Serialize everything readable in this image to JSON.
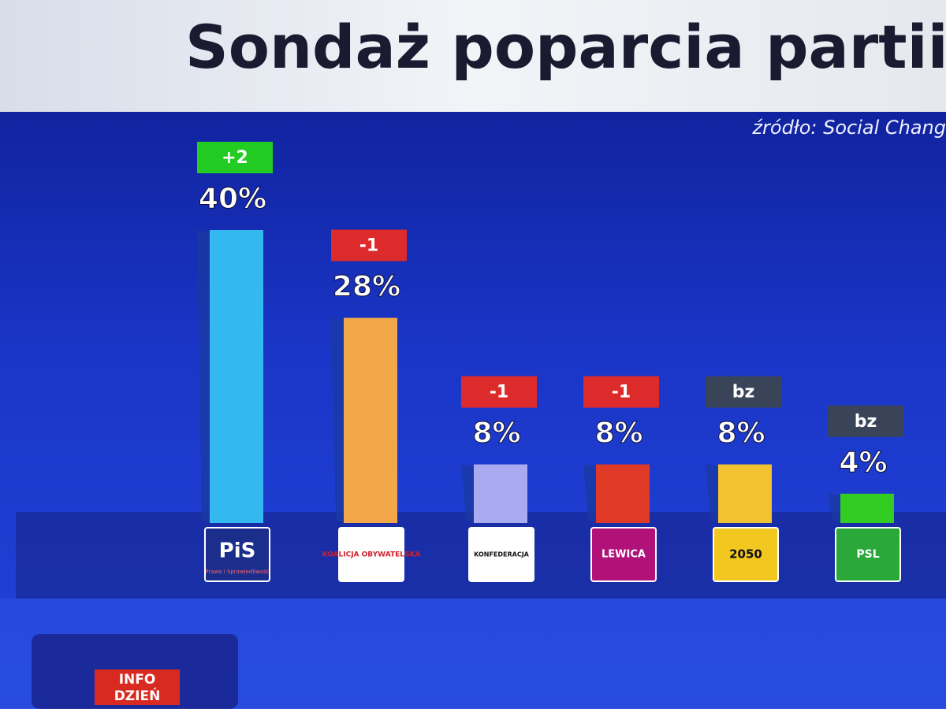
{
  "chart_data": {
    "type": "bar",
    "title": "Sondaż poparcia partii p",
    "source": "źródło: Social Chang",
    "categories": [
      "PiS",
      "KOALICJA OBYWATELSKA",
      "KONFEDERACJA",
      "LEWICA",
      "2050",
      "PSL"
    ],
    "category_subtitle": "Prawo i Sprawiedliwość",
    "values": [
      40,
      28,
      8,
      8,
      8,
      4
    ],
    "value_labels": [
      "40%",
      "28%",
      "8%",
      "8%",
      "8%",
      "4%"
    ],
    "colors": [
      "#34b8f0",
      "#f2a848",
      "#aaaaf0",
      "#e03a26",
      "#f2c230",
      "#33cc22"
    ],
    "changes": [
      "+2",
      "-1",
      "-1",
      "-1",
      "bz",
      "bz"
    ],
    "change_colors": [
      "#22cc22",
      "#dd2a2a",
      "#dd2a2a",
      "#dd2a2a",
      "#3a4458",
      "#3a4458"
    ],
    "branding": [
      "INFO",
      "DZIEŃ"
    ]
  }
}
